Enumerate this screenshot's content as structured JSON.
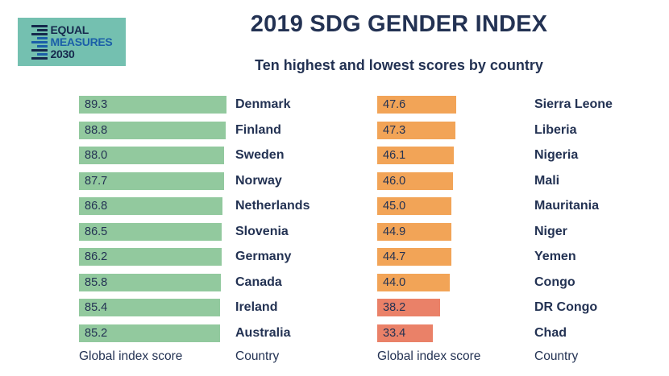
{
  "logo": {
    "org_lines": [
      "EQUAL",
      "MEASURES",
      "2030"
    ],
    "background_color": "#74c0b0",
    "navy_color": "#16294d",
    "blue_color": "#1b5fa8"
  },
  "chart_data": {
    "type": "bar",
    "orientation": "horizontal",
    "title": "2019 SDG GENDER INDEX",
    "subtitle": "Ten highest and lowest scores by country",
    "xlim": [
      0,
      100
    ],
    "grid": false,
    "legend": false,
    "text_color": "#233253",
    "groups": [
      {
        "name": "ten-highest",
        "bar_color": "#92c99e",
        "x_axis_label": "Global index score",
        "category_axis_label": "Country",
        "rows": [
          {
            "country": "Denmark",
            "value": 89.3,
            "label": "89.3"
          },
          {
            "country": "Finland",
            "value": 88.8,
            "label": "88.8"
          },
          {
            "country": "Sweden",
            "value": 88.0,
            "label": "88.0"
          },
          {
            "country": "Norway",
            "value": 87.7,
            "label": "87.7"
          },
          {
            "country": "Netherlands",
            "value": 86.8,
            "label": "86.8"
          },
          {
            "country": "Slovenia",
            "value": 86.5,
            "label": "86.5"
          },
          {
            "country": "Germany",
            "value": 86.2,
            "label": "86.2"
          },
          {
            "country": "Canada",
            "value": 85.8,
            "label": "85.8"
          },
          {
            "country": "Ireland",
            "value": 85.4,
            "label": "85.4"
          },
          {
            "country": "Australia",
            "value": 85.2,
            "label": "85.2"
          }
        ]
      },
      {
        "name": "ten-lowest",
        "bar_color": "#f2a457",
        "x_axis_label": "Global index score",
        "category_axis_label": "Country",
        "rows": [
          {
            "country": "Sierra Leone",
            "value": 47.6,
            "label": "47.6"
          },
          {
            "country": "Liberia",
            "value": 47.3,
            "label": "47.3"
          },
          {
            "country": "Nigeria",
            "value": 46.1,
            "label": "46.1"
          },
          {
            "country": "Mali",
            "value": 46.0,
            "label": "46.0"
          },
          {
            "country": "Mauritania",
            "value": 45.0,
            "label": "45.0"
          },
          {
            "country": "Niger",
            "value": 44.9,
            "label": "44.9"
          },
          {
            "country": "Yemen",
            "value": 44.7,
            "label": "44.7"
          },
          {
            "country": "Congo",
            "value": 44.0,
            "label": "44.0"
          },
          {
            "country": "DR Congo",
            "value": 38.2,
            "label": "38.2",
            "color": "#ea8168"
          },
          {
            "country": "Chad",
            "value": 33.4,
            "label": "33.4",
            "color": "#ea8168"
          }
        ]
      }
    ]
  }
}
